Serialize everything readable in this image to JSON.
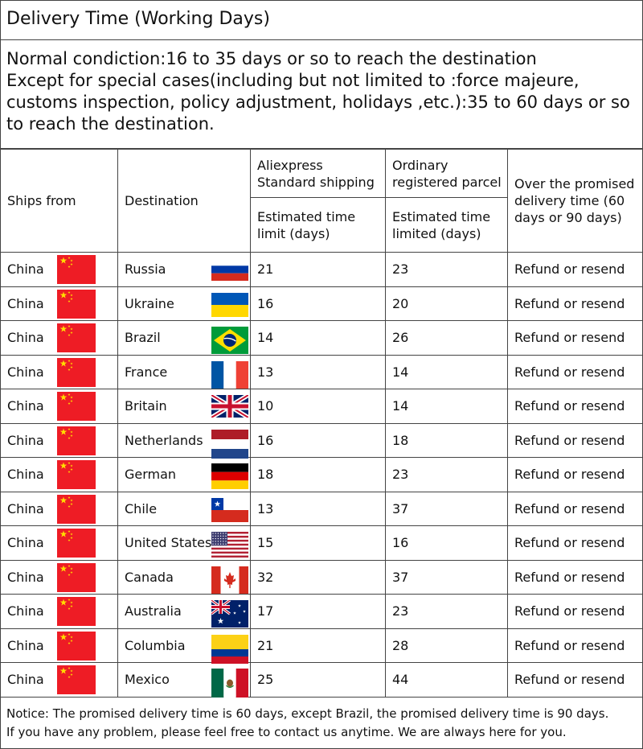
{
  "title": "Delivery Time (Working Days)",
  "condition": {
    "line1": "Normal condiction:16 to 35 days or so to reach the destination",
    "line2": "Except for special cases(including but not limited to :force majeure,",
    "line3": "customs inspection, policy adjustment, holidays ,etc.):35 to 60 days or so",
    "line4": "to reach the destination."
  },
  "table": {
    "headers": {
      "ships_from": "Ships from",
      "destination": "Destination",
      "aliexpress": "Aliexpress Standard shipping",
      "ordinary": "Ordinary registered parcel",
      "over": "Over the promised delivery time (60 days or 90 days)",
      "est_aliexpress": "Estimated time limit (days)",
      "est_ordinary": "Estimated time limited (days)"
    },
    "rows": [
      {
        "from": "China",
        "from_flag": "china",
        "destination": "Russia",
        "flag": "russia",
        "aliexpress": "21",
        "ordinary": "23",
        "action": "Refund or resend"
      },
      {
        "from": "China",
        "from_flag": "china",
        "destination": "Ukraine",
        "flag": "ukraine",
        "aliexpress": "16",
        "ordinary": "20",
        "action": "Refund or resend"
      },
      {
        "from": "China",
        "from_flag": "china",
        "destination": "Brazil",
        "flag": "brazil",
        "aliexpress": "14",
        "ordinary": "26",
        "action": "Refund or resend"
      },
      {
        "from": "China",
        "from_flag": "china",
        "destination": "France",
        "flag": "france",
        "aliexpress": "13",
        "ordinary": "14",
        "action": "Refund or resend"
      },
      {
        "from": "China",
        "from_flag": "china",
        "destination": "Britain",
        "flag": "britain",
        "aliexpress": "10",
        "ordinary": "14",
        "action": "Refund or resend"
      },
      {
        "from": "China",
        "from_flag": "china",
        "destination": "Netherlands",
        "flag": "netherlands",
        "aliexpress": "16",
        "ordinary": "18",
        "action": "Refund or resend"
      },
      {
        "from": "China",
        "from_flag": "china",
        "destination": "German",
        "flag": "germany",
        "aliexpress": "18",
        "ordinary": "23",
        "action": "Refund or resend"
      },
      {
        "from": "China",
        "from_flag": "china",
        "destination": "Chile",
        "flag": "chile",
        "aliexpress": "13",
        "ordinary": "37",
        "action": "Refund or resend"
      },
      {
        "from": "China",
        "from_flag": "china",
        "destination": "United States",
        "flag": "usa",
        "aliexpress": "15",
        "ordinary": "16",
        "action": "Refund or resend"
      },
      {
        "from": "China",
        "from_flag": "china",
        "destination": "Canada",
        "flag": "canada",
        "aliexpress": "32",
        "ordinary": "37",
        "action": "Refund or resend"
      },
      {
        "from": "China",
        "from_flag": "china",
        "destination": "Australia",
        "flag": "australia",
        "aliexpress": "17",
        "ordinary": "23",
        "action": "Refund or resend"
      },
      {
        "from": "China",
        "from_flag": "china",
        "destination": "Columbia",
        "flag": "colombia",
        "aliexpress": "21",
        "ordinary": "28",
        "action": "Refund or resend"
      },
      {
        "from": "China",
        "from_flag": "china",
        "destination": "Mexico",
        "flag": "mexico",
        "aliexpress": "25",
        "ordinary": "44",
        "action": "Refund or resend"
      }
    ]
  },
  "notice": {
    "line1": "Notice: The promised delivery time is 60 days, except Brazil, the promised delivery time is 90 days.",
    "line2": "If you have any problem, please feel free to contact us anytime. We are always here for you."
  }
}
